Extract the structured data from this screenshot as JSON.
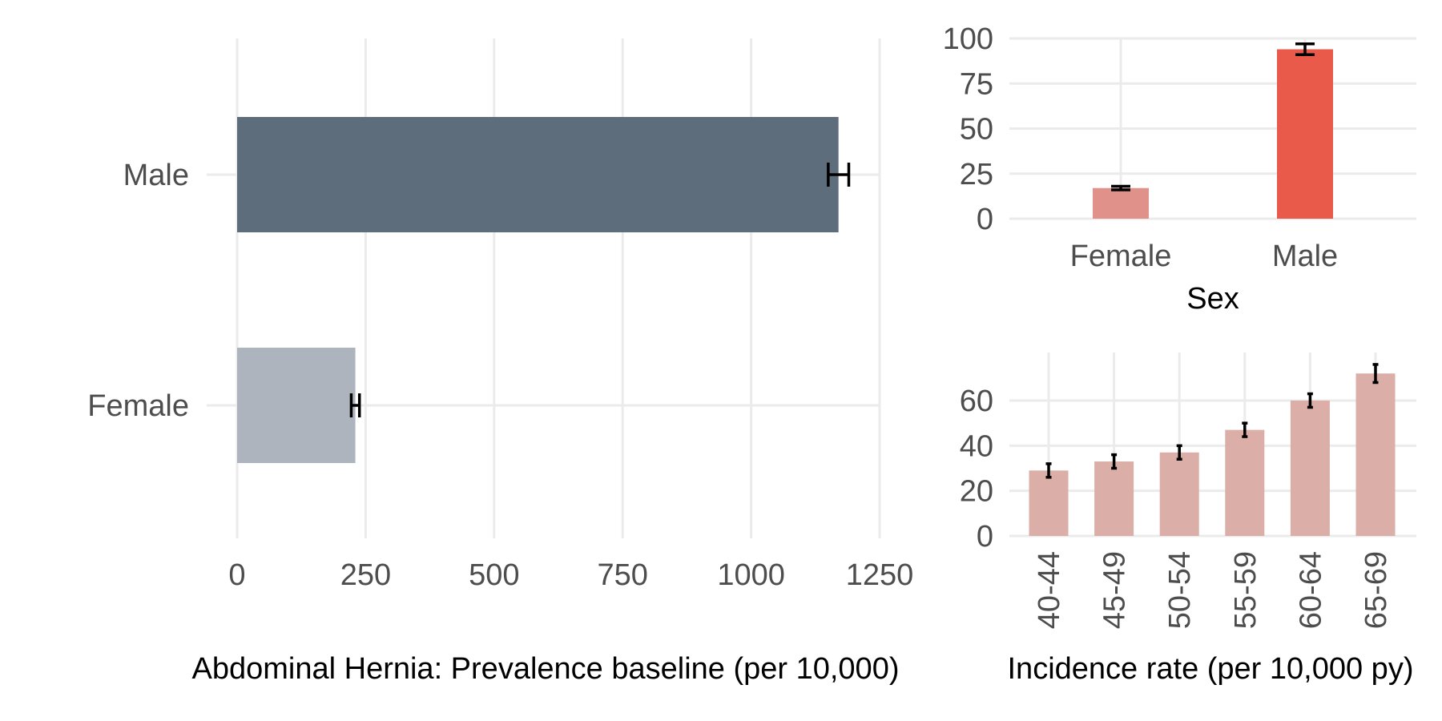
{
  "chart_data": [
    {
      "type": "bar",
      "orientation": "horizontal",
      "categories": [
        "Female",
        "Male"
      ],
      "values": [
        230,
        1170
      ],
      "error_low": [
        222,
        1150
      ],
      "error_high": [
        238,
        1190
      ],
      "xlim": [
        0,
        1250
      ],
      "x_ticks": [
        "0",
        "250",
        "500",
        "750",
        "1000",
        "1250"
      ],
      "xlabel": "Abdominal Hernia: Prevalence baseline (per 10,000)",
      "ylabel": "",
      "colors": [
        "#adb4be",
        "#5d6d7c"
      ],
      "grid": true
    },
    {
      "type": "bar",
      "categories": [
        "Female",
        "Male"
      ],
      "values": [
        17,
        94
      ],
      "error_low": [
        16,
        91
      ],
      "error_high": [
        18,
        97
      ],
      "ylim": [
        0,
        100
      ],
      "y_ticks": [
        "0",
        "25",
        "50",
        "75",
        "100"
      ],
      "xlabel": "Sex",
      "ylabel": "",
      "colors": [
        "#df918a",
        "#ea5a4a"
      ],
      "grid": true
    },
    {
      "type": "bar",
      "categories": [
        "40-44",
        "45-49",
        "50-54",
        "55-59",
        "60-64",
        "65-69"
      ],
      "values": [
        29,
        33,
        37,
        47,
        60,
        72
      ],
      "error_low": [
        26,
        30,
        34,
        44,
        57,
        68
      ],
      "error_high": [
        32,
        36,
        40,
        50,
        63,
        76
      ],
      "ylim": [
        0,
        80
      ],
      "y_ticks": [
        "0",
        "20",
        "40",
        "60"
      ],
      "xlabel": "Incidence rate (per 10,000 py)",
      "ylabel": "",
      "colors": [
        "#dbaea8"
      ],
      "grid": true
    }
  ]
}
